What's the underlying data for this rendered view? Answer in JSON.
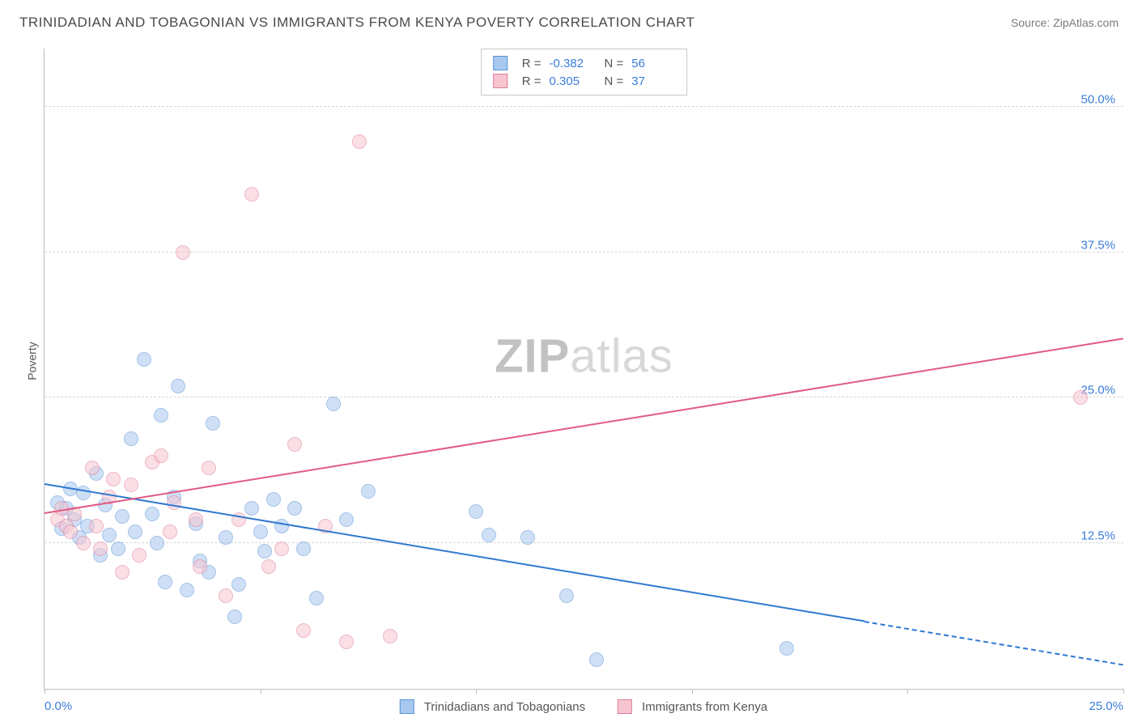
{
  "header": {
    "title": "TRINIDADIAN AND TOBAGONIAN VS IMMIGRANTS FROM KENYA POVERTY CORRELATION CHART",
    "source_label": "Source: ",
    "source_name": "ZipAtlas.com"
  },
  "watermark": {
    "part1": "ZIP",
    "part2": "atlas"
  },
  "chart": {
    "type": "scatter",
    "y_label": "Poverty",
    "xlim": [
      0,
      25
    ],
    "ylim": [
      0,
      55
    ],
    "x_ticks": [
      0,
      5,
      10,
      15,
      20,
      25
    ],
    "x_tick_labels": {
      "0": "0.0%",
      "25": "25.0%"
    },
    "y_gridlines": [
      12.5,
      25.0,
      37.5,
      50.0
    ],
    "y_tick_labels": [
      "12.5%",
      "25.0%",
      "37.5%",
      "50.0%"
    ],
    "background_color": "#ffffff",
    "grid_color": "#d8d8d8",
    "axis_color": "#bdbdbd",
    "tick_label_color": "#3b7dd8",
    "marker_radius": 9,
    "marker_opacity": 0.55,
    "series": [
      {
        "id": "blue",
        "name": "Trinidadians and Tobagonians",
        "fill": "#a8c8ef",
        "stroke": "#5a93d6",
        "points": [
          [
            0.3,
            16.0
          ],
          [
            0.4,
            13.8
          ],
          [
            0.5,
            15.5
          ],
          [
            0.6,
            17.2
          ],
          [
            0.7,
            14.5
          ],
          [
            0.8,
            13.0
          ],
          [
            0.9,
            16.8
          ],
          [
            1.0,
            14.0
          ],
          [
            1.2,
            18.5
          ],
          [
            1.3,
            11.5
          ],
          [
            1.4,
            15.8
          ],
          [
            1.5,
            13.2
          ],
          [
            1.7,
            12.0
          ],
          [
            1.8,
            14.8
          ],
          [
            2.0,
            21.5
          ],
          [
            2.1,
            13.5
          ],
          [
            2.3,
            28.3
          ],
          [
            2.5,
            15.0
          ],
          [
            2.6,
            12.5
          ],
          [
            2.7,
            23.5
          ],
          [
            2.8,
            9.2
          ],
          [
            3.0,
            16.5
          ],
          [
            3.1,
            26.0
          ],
          [
            3.3,
            8.5
          ],
          [
            3.5,
            14.2
          ],
          [
            3.6,
            11.0
          ],
          [
            3.8,
            10.0
          ],
          [
            3.9,
            22.8
          ],
          [
            4.2,
            13.0
          ],
          [
            4.4,
            6.2
          ],
          [
            4.5,
            9.0
          ],
          [
            4.8,
            15.5
          ],
          [
            5.0,
            13.5
          ],
          [
            5.1,
            11.8
          ],
          [
            5.3,
            16.3
          ],
          [
            5.5,
            14.0
          ],
          [
            5.8,
            15.5
          ],
          [
            6.0,
            12.0
          ],
          [
            6.3,
            7.8
          ],
          [
            6.7,
            24.5
          ],
          [
            7.0,
            14.5
          ],
          [
            7.5,
            17.0
          ],
          [
            10.0,
            15.2
          ],
          [
            10.3,
            13.2
          ],
          [
            11.2,
            13.0
          ],
          [
            12.1,
            8.0
          ],
          [
            12.8,
            2.5
          ],
          [
            17.2,
            3.5
          ]
        ],
        "trend": {
          "x1": 0,
          "y1": 17.5,
          "x2": 25,
          "y2": 2.0,
          "color": "#2f78d0",
          "dash_from_x": 19
        }
      },
      {
        "id": "pink",
        "name": "Immigrants from Kenya",
        "fill": "#f6c5d0",
        "stroke": "#e07d9a",
        "points": [
          [
            0.3,
            14.5
          ],
          [
            0.4,
            15.5
          ],
          [
            0.5,
            14.0
          ],
          [
            0.6,
            13.5
          ],
          [
            0.7,
            15.0
          ],
          [
            0.9,
            12.5
          ],
          [
            1.1,
            19.0
          ],
          [
            1.2,
            14.0
          ],
          [
            1.3,
            12.0
          ],
          [
            1.5,
            16.5
          ],
          [
            1.6,
            18.0
          ],
          [
            1.8,
            10.0
          ],
          [
            2.0,
            17.5
          ],
          [
            2.2,
            11.5
          ],
          [
            2.5,
            19.5
          ],
          [
            2.7,
            20.0
          ],
          [
            2.9,
            13.5
          ],
          [
            3.0,
            16.0
          ],
          [
            3.2,
            37.5
          ],
          [
            3.5,
            14.5
          ],
          [
            3.6,
            10.5
          ],
          [
            3.8,
            19.0
          ],
          [
            4.2,
            8.0
          ],
          [
            4.5,
            14.5
          ],
          [
            4.8,
            42.5
          ],
          [
            5.2,
            10.5
          ],
          [
            5.5,
            12.0
          ],
          [
            5.8,
            21.0
          ],
          [
            6.0,
            5.0
          ],
          [
            6.5,
            14.0
          ],
          [
            7.0,
            4.0
          ],
          [
            7.3,
            47.0
          ],
          [
            8.0,
            4.5
          ],
          [
            24.0,
            25.0
          ]
        ],
        "trend": {
          "x1": 0,
          "y1": 15.0,
          "x2": 25,
          "y2": 30.0,
          "color": "#e15a84"
        }
      }
    ],
    "stats_box": {
      "rows": [
        {
          "swatch_fill": "#a8c8ef",
          "swatch_stroke": "#5a93d6",
          "r_label": "R =",
          "r_value": "-0.382",
          "n_label": "N =",
          "n_value": "56"
        },
        {
          "swatch_fill": "#f6c5d0",
          "swatch_stroke": "#e07d9a",
          "r_label": "R =",
          "r_value": " 0.305",
          "n_label": "N =",
          "n_value": "37"
        }
      ]
    },
    "legend": [
      {
        "swatch_fill": "#a8c8ef",
        "swatch_stroke": "#5a93d6",
        "label": "Trinidadians and Tobagonians"
      },
      {
        "swatch_fill": "#f6c5d0",
        "swatch_stroke": "#e07d9a",
        "label": "Immigrants from Kenya"
      }
    ]
  }
}
